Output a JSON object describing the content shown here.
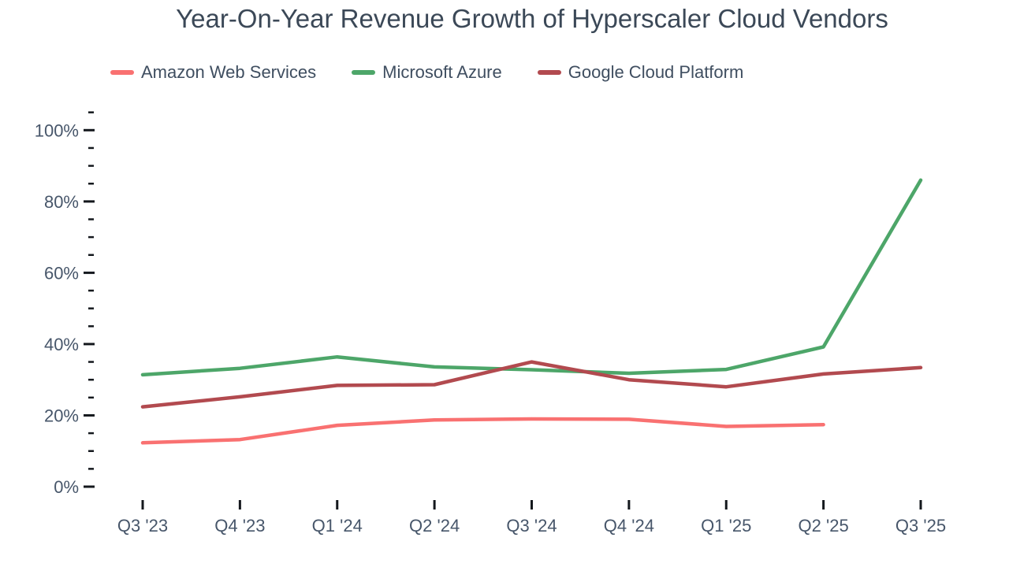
{
  "chart_data": {
    "type": "line",
    "title": "Year-On-Year Revenue Growth of Hyperscaler Cloud Vendors",
    "categories": [
      "Q3 '23",
      "Q4 '23",
      "Q1 '24",
      "Q2 '24",
      "Q3 '24",
      "Q4 '24",
      "Q1 '25",
      "Q2 '25",
      "Q3 '25"
    ],
    "series": [
      {
        "id": "aws",
        "name": "Amazon Web Services",
        "color": "#f97171",
        "values": [
          12.3,
          13.2,
          17.2,
          18.7,
          19.0,
          18.9,
          16.9,
          17.4,
          null
        ]
      },
      {
        "id": "azure",
        "name": "Microsoft Azure",
        "color": "#4da669",
        "values": [
          31.4,
          33.2,
          36.4,
          33.6,
          32.8,
          31.8,
          32.9,
          39.2,
          86.0
        ]
      },
      {
        "id": "gcp",
        "name": "Google Cloud Platform",
        "color": "#b24a4f",
        "values": [
          22.4,
          25.2,
          28.4,
          28.6,
          35.0,
          30.0,
          28.0,
          31.6,
          33.4
        ]
      }
    ],
    "y_axis": {
      "tick_labels": [
        "0%",
        "20%",
        "40%",
        "60%",
        "80%",
        "100%"
      ],
      "tick_values": [
        0,
        20,
        40,
        60,
        80,
        100
      ],
      "minor_step": 5,
      "minor_max": 105,
      "range": [
        0,
        105
      ],
      "unit": "percent"
    },
    "x_axis": {
      "label": ""
    },
    "legend": {
      "position": "top-left"
    },
    "grid": false,
    "colors": {
      "axis_ticks": "#14181d",
      "tick_text": "#47566a",
      "title_text": "#3b4857",
      "background": "#ffffff"
    },
    "line_width": 4.5
  }
}
